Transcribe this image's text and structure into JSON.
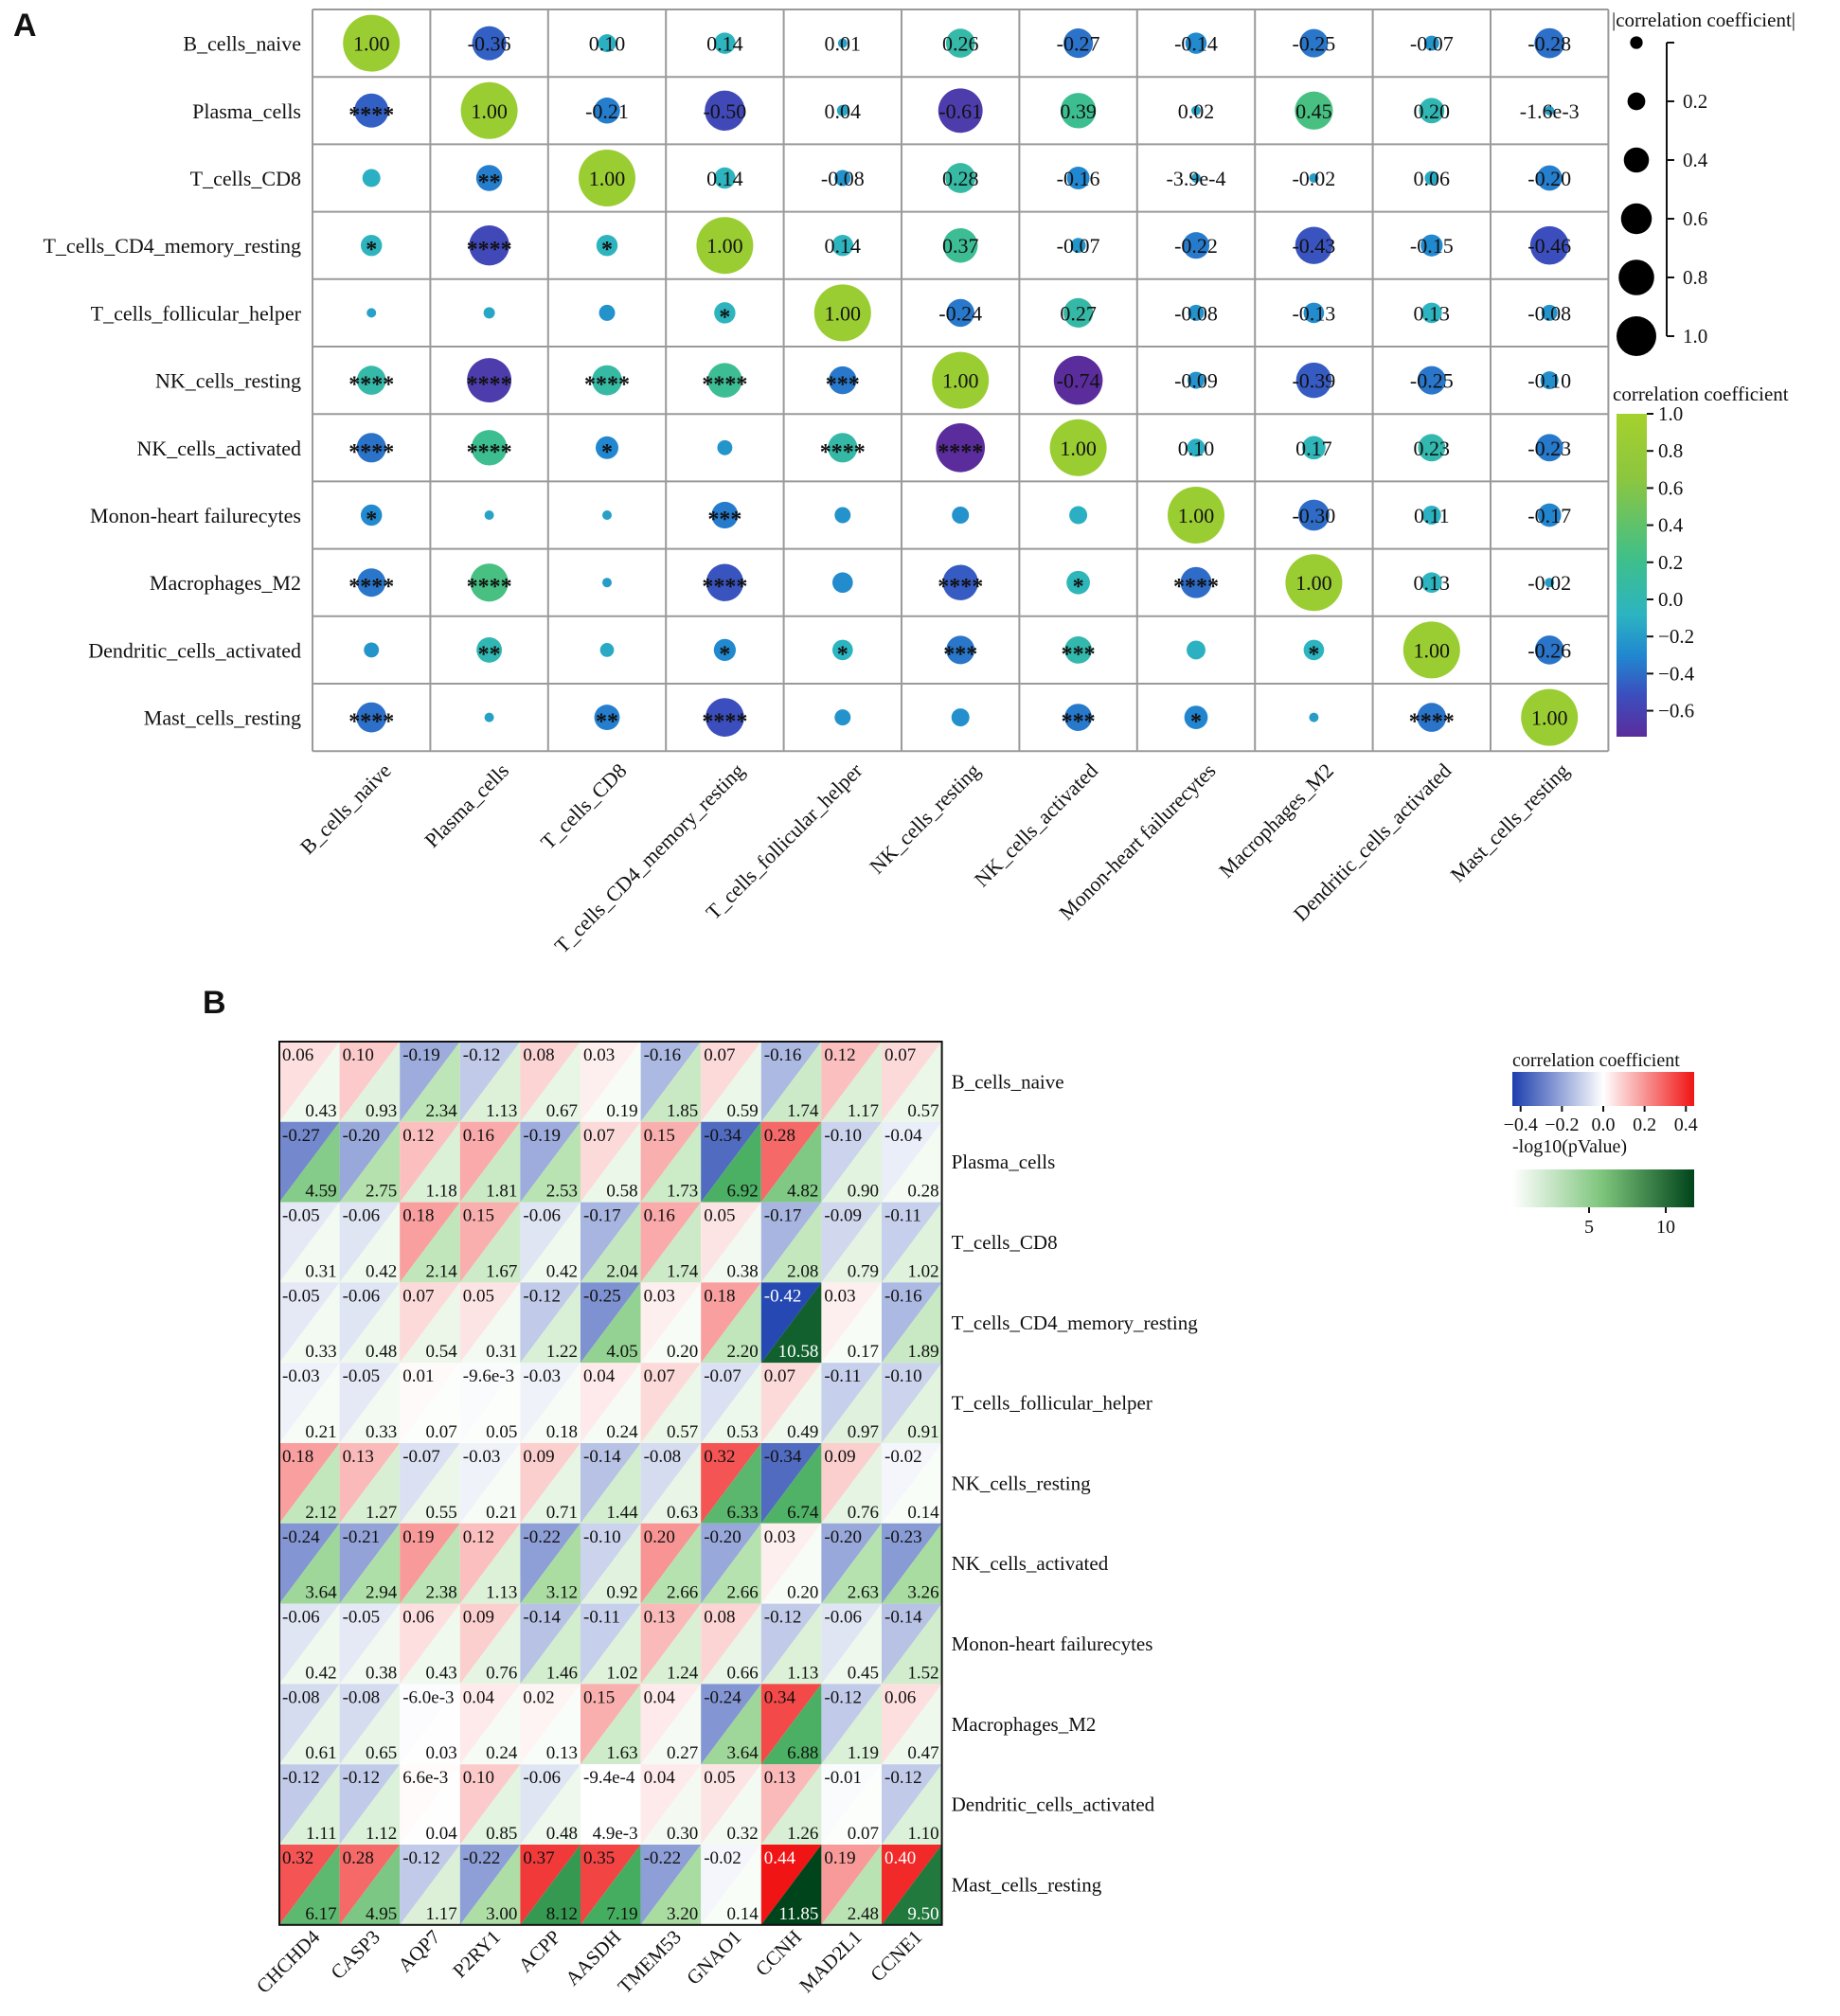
{
  "colors": {
    "bubble_scale": [
      "#5b2c9c",
      "#3b4fbe",
      "#2187d0",
      "#2cb4c0",
      "#3fbf8a",
      "#8cc63f",
      "#9acd32"
    ],
    "corr_scale": [
      "#1c3fae",
      "#ffffff",
      "#f01414"
    ],
    "pval_scale": [
      "#ffffff",
      "#00441b"
    ],
    "grid": "#9a9a9a"
  },
  "chart_data": [
    {
      "panel": "A",
      "type": "bubble-correlation-matrix",
      "rows": [
        "B_cells_naive",
        "Plasma_cells",
        "T_cells_CD8",
        "T_cells_CD4_memory_resting",
        "T_cells_follicular_helper",
        "NK_cells_resting",
        "NK_cells_activated",
        "Monon-heart failurecytes",
        "Macrophages_M2",
        "Dendritic_cells_activated",
        "Mast_cells_resting"
      ],
      "columns": [
        "B_cells_naive",
        "Plasma_cells",
        "T_cells_CD8",
        "T_cells_CD4_memory_resting",
        "T_cells_follicular_helper",
        "NK_cells_resting",
        "NK_cells_activated",
        "Monon-heart failurecytes",
        "Macrophages_M2",
        "Dendritic_cells_activated",
        "Mast_cells_resting"
      ],
      "upper_labels": [
        [
          "1.00",
          "-0.36",
          "0.10",
          "0.14",
          "0.01",
          "0.26",
          "-0.27",
          "-0.14",
          "-0.25",
          "-0.07",
          "-0.28"
        ],
        [
          "",
          "1.00",
          "-0.21",
          "-0.50",
          "0.04",
          "-0.61",
          "0.39",
          "0.02",
          "0.45",
          "0.20",
          "-1.6e-3"
        ],
        [
          "",
          "",
          "1.00",
          "0.14",
          "-0.08",
          "0.28",
          "-0.16",
          "-3.9e-4",
          "-0.02",
          "0.06",
          "-0.20"
        ],
        [
          "",
          "",
          "",
          "1.00",
          "0.14",
          "0.37",
          "-0.07",
          "-0.22",
          "-0.43",
          "-0.15",
          "-0.46"
        ],
        [
          "",
          "",
          "",
          "",
          "1.00",
          "-0.24",
          "0.27",
          "-0.08",
          "-0.13",
          "0.13",
          "-0.08"
        ],
        [
          "",
          "",
          "",
          "",
          "",
          "1.00",
          "-0.74",
          "-0.09",
          "-0.39",
          "-0.25",
          "-0.10"
        ],
        [
          "",
          "",
          "",
          "",
          "",
          "",
          "1.00",
          "0.10",
          "0.17",
          "0.23",
          "-0.23"
        ],
        [
          "",
          "",
          "",
          "",
          "",
          "",
          "",
          "1.00",
          "-0.30",
          "0.11",
          "-0.17"
        ],
        [
          "",
          "",
          "",
          "",
          "",
          "",
          "",
          "",
          "1.00",
          "0.13",
          "-0.02"
        ],
        [
          "",
          "",
          "",
          "",
          "",
          "",
          "",
          "",
          "",
          "1.00",
          "-0.26"
        ],
        [
          "",
          "",
          "",
          "",
          "",
          "",
          "",
          "",
          "",
          "",
          "1.00"
        ]
      ],
      "lower_stars": [
        [
          "",
          "",
          "",
          "",
          "",
          "",
          "",
          "",
          "",
          "",
          ""
        ],
        [
          "****",
          "",
          "",
          "",
          "",
          "",
          "",
          "",
          "",
          "",
          ""
        ],
        [
          "",
          "**",
          "",
          "",
          "",
          "",
          "",
          "",
          "",
          "",
          ""
        ],
        [
          "*",
          "****",
          "*",
          "",
          "",
          "",
          "",
          "",
          "",
          "",
          ""
        ],
        [
          "",
          "",
          "",
          "*",
          "",
          "",
          "",
          "",
          "",
          "",
          ""
        ],
        [
          "****",
          "****",
          "****",
          "****",
          "***",
          "",
          "",
          "",
          "",
          "",
          ""
        ],
        [
          "****",
          "****",
          "*",
          "",
          "****",
          "****",
          "",
          "",
          "",
          "",
          ""
        ],
        [
          "*",
          "",
          "",
          "***",
          "",
          "",
          "",
          "",
          "",
          "",
          ""
        ],
        [
          "****",
          "****",
          "",
          "****",
          "",
          "****",
          "*",
          "****",
          "",
          "",
          ""
        ],
        [
          "",
          "**",
          "",
          "*",
          "*",
          "***",
          "***",
          "",
          "*",
          "",
          ""
        ],
        [
          "****",
          "",
          "**",
          "****",
          "",
          "",
          "***",
          "*",
          "",
          "****",
          ""
        ]
      ],
      "size_legend": {
        "title": "|correlation coefficient|",
        "ticks": [
          "0.2",
          "0.4",
          "0.6",
          "0.8",
          "1.0"
        ],
        "values": [
          0.1,
          0.2,
          0.4,
          0.6,
          0.8,
          1.0
        ]
      },
      "color_legend": {
        "title": "correlation coefficient",
        "ticks": [
          "1.0",
          "0.8",
          "0.6",
          "0.4",
          "0.2",
          "0.0",
          "−0.2",
          "−0.4",
          "−0.6"
        ],
        "min": -0.74,
        "max": 1.0
      }
    },
    {
      "panel": "B",
      "type": "split-triangle-heatmap",
      "rows": [
        "B_cells_naive",
        "Plasma_cells",
        "T_cells_CD8",
        "T_cells_CD4_memory_resting",
        "T_cells_follicular_helper",
        "NK_cells_resting",
        "NK_cells_activated",
        "Monon-heart failurecytes",
        "Macrophages_M2",
        "Dendritic_cells_activated",
        "Mast_cells_resting"
      ],
      "columns": [
        "CHCHD4",
        "CASP3",
        "AQP7",
        "P2RY1",
        "ACPP",
        "AASDH",
        "TMEM53",
        "GNAO1",
        "CCNH",
        "MAD2L1",
        "CCNE1"
      ],
      "correlation": [
        [
          "0.06",
          "0.10",
          "-0.19",
          "-0.12",
          "0.08",
          "0.03",
          "-0.16",
          "0.07",
          "-0.16",
          "0.12",
          "0.07"
        ],
        [
          "-0.27",
          "-0.20",
          "0.12",
          "0.16",
          "-0.19",
          "0.07",
          "0.15",
          "-0.34",
          "0.28",
          "-0.10",
          "-0.04"
        ],
        [
          "-0.05",
          "-0.06",
          "0.18",
          "0.15",
          "-0.06",
          "-0.17",
          "0.16",
          "0.05",
          "-0.17",
          "-0.09",
          "-0.11"
        ],
        [
          "-0.05",
          "-0.06",
          "0.07",
          "0.05",
          "-0.12",
          "-0.25",
          "0.03",
          "0.18",
          "-0.42",
          "0.03",
          "-0.16"
        ],
        [
          "-0.03",
          "-0.05",
          "0.01",
          "-9.6e-3",
          "-0.03",
          "0.04",
          "0.07",
          "-0.07",
          "0.07",
          "-0.11",
          "-0.10"
        ],
        [
          "0.18",
          "0.13",
          "-0.07",
          "-0.03",
          "0.09",
          "-0.14",
          "-0.08",
          "0.32",
          "-0.34",
          "0.09",
          "-0.02"
        ],
        [
          "-0.24",
          "-0.21",
          "0.19",
          "0.12",
          "-0.22",
          "-0.10",
          "0.20",
          "-0.20",
          "0.03",
          "-0.20",
          "-0.23"
        ],
        [
          "-0.06",
          "-0.05",
          "0.06",
          "0.09",
          "-0.14",
          "-0.11",
          "0.13",
          "0.08",
          "-0.12",
          "-0.06",
          "-0.14"
        ],
        [
          "-0.08",
          "-0.08",
          "-6.0e-3",
          "0.04",
          "0.02",
          "0.15",
          "0.04",
          "-0.24",
          "0.34",
          "-0.12",
          "0.06"
        ],
        [
          "-0.12",
          "-0.12",
          "6.6e-3",
          "0.10",
          "-0.06",
          "-9.4e-4",
          "0.04",
          "0.05",
          "0.13",
          "-0.01",
          "-0.12"
        ],
        [
          "0.32",
          "0.28",
          "-0.12",
          "-0.22",
          "0.37",
          "0.35",
          "-0.22",
          "-0.02",
          "0.44",
          "0.19",
          "0.40"
        ]
      ],
      "neg_log10_p": [
        [
          "0.43",
          "0.93",
          "2.34",
          "1.13",
          "0.67",
          "0.19",
          "1.85",
          "0.59",
          "1.74",
          "1.17",
          "0.57"
        ],
        [
          "4.59",
          "2.75",
          "1.18",
          "1.81",
          "2.53",
          "0.58",
          "1.73",
          "6.92",
          "4.82",
          "0.90",
          "0.28"
        ],
        [
          "0.31",
          "0.42",
          "2.14",
          "1.67",
          "0.42",
          "2.04",
          "1.74",
          "0.38",
          "2.08",
          "0.79",
          "1.02"
        ],
        [
          "0.33",
          "0.48",
          "0.54",
          "0.31",
          "1.22",
          "4.05",
          "0.20",
          "2.20",
          "10.58",
          "0.17",
          "1.89"
        ],
        [
          "0.21",
          "0.33",
          "0.07",
          "0.05",
          "0.18",
          "0.24",
          "0.57",
          "0.53",
          "0.49",
          "0.97",
          "0.91"
        ],
        [
          "2.12",
          "1.27",
          "0.55",
          "0.21",
          "0.71",
          "1.44",
          "0.63",
          "6.33",
          "6.74",
          "0.76",
          "0.14"
        ],
        [
          "3.64",
          "2.94",
          "2.38",
          "1.13",
          "3.12",
          "0.92",
          "2.66",
          "2.66",
          "0.20",
          "2.63",
          "3.26"
        ],
        [
          "0.42",
          "0.38",
          "0.43",
          "0.76",
          "1.46",
          "1.02",
          "1.24",
          "0.66",
          "1.13",
          "0.45",
          "1.52"
        ],
        [
          "0.61",
          "0.65",
          "0.03",
          "0.24",
          "0.13",
          "1.63",
          "0.27",
          "3.64",
          "6.88",
          "1.19",
          "0.47"
        ],
        [
          "1.11",
          "1.12",
          "0.04",
          "0.85",
          "0.48",
          "4.9e-3",
          "0.30",
          "0.32",
          "1.26",
          "0.07",
          "1.10"
        ],
        [
          "6.17",
          "4.95",
          "1.17",
          "3.00",
          "8.12",
          "7.19",
          "3.20",
          "0.14",
          "11.85",
          "2.48",
          "9.50"
        ]
      ],
      "corr_legend": {
        "title": "correlation coefficient",
        "ticks": [
          "−0.4",
          "−0.2",
          "0.0",
          "0.2",
          "0.4"
        ],
        "min": -0.44,
        "max": 0.44
      },
      "pval_legend": {
        "title": "-log10(pValue)",
        "ticks": [
          "5",
          "10"
        ],
        "min": 0,
        "max": 11.85
      }
    }
  ],
  "panels": {
    "a": "A",
    "b": "B"
  }
}
